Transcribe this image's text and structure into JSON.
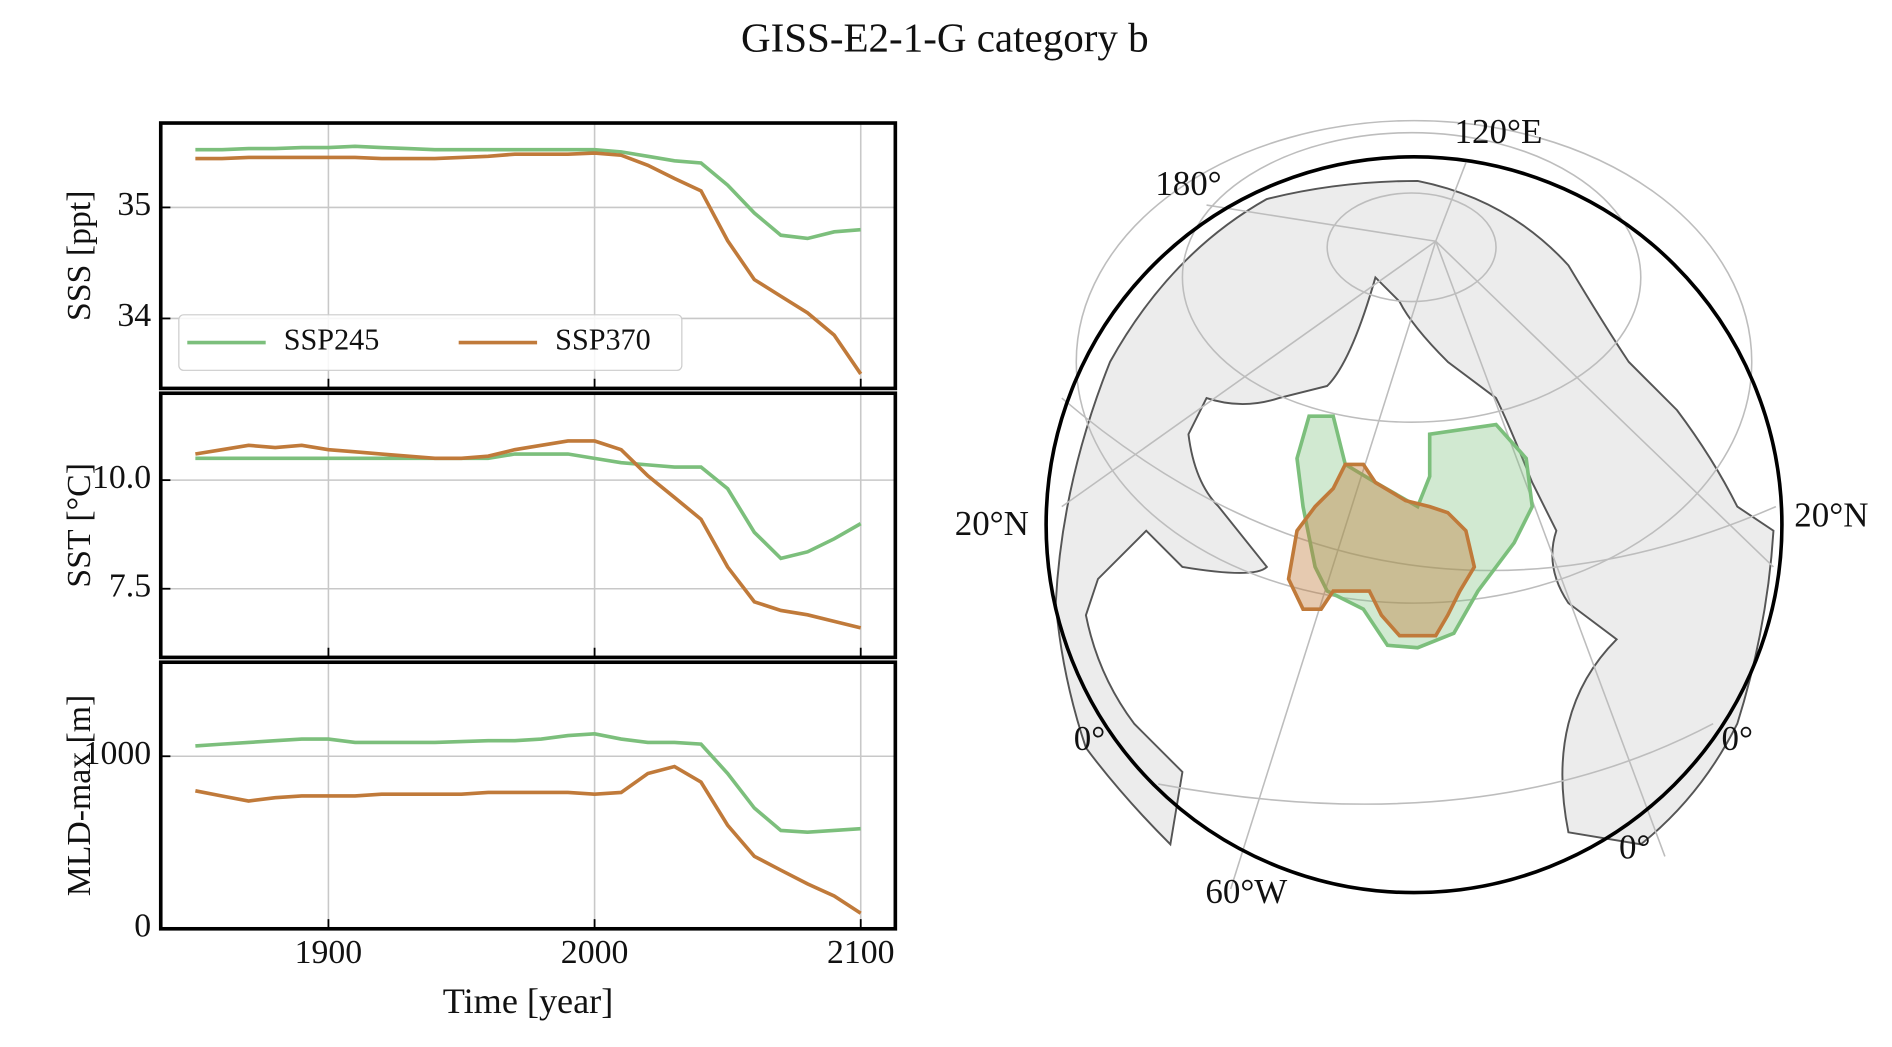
{
  "title": "GISS-E2-1-G category b",
  "chart_data": [
    {
      "type": "line",
      "ylabel": "SSS [ppt]",
      "x": [
        1850,
        1860,
        1870,
        1880,
        1890,
        1900,
        1910,
        1920,
        1930,
        1940,
        1950,
        1960,
        1970,
        1980,
        1990,
        2000,
        2010,
        2020,
        2030,
        2040,
        2050,
        2060,
        2070,
        2080,
        2090,
        2100
      ],
      "xlim": [
        1837,
        2113
      ],
      "xticks": [
        1900,
        2000,
        2100
      ],
      "ylim": [
        33.37,
        35.76
      ],
      "yticks": [
        34,
        35
      ],
      "grid": true,
      "legend": "lower left",
      "series": [
        {
          "name": "SSP245",
          "color": "#7cbf7c",
          "values": [
            35.52,
            35.52,
            35.53,
            35.53,
            35.54,
            35.54,
            35.55,
            35.54,
            35.53,
            35.52,
            35.52,
            35.52,
            35.52,
            35.52,
            35.52,
            35.52,
            35.5,
            35.46,
            35.42,
            35.4,
            35.2,
            34.95,
            34.75,
            34.72,
            34.78,
            34.8
          ]
        },
        {
          "name": "SSP370",
          "color": "#c07a3a",
          "values": [
            35.44,
            35.44,
            35.45,
            35.45,
            35.45,
            35.45,
            35.45,
            35.44,
            35.44,
            35.44,
            35.45,
            35.46,
            35.48,
            35.48,
            35.48,
            35.49,
            35.47,
            35.38,
            35.26,
            35.15,
            34.7,
            34.35,
            34.2,
            34.05,
            33.85,
            33.5
          ]
        }
      ]
    },
    {
      "type": "line",
      "ylabel": "SST [°C]",
      "x": [
        1850,
        1860,
        1870,
        1880,
        1890,
        1900,
        1910,
        1920,
        1930,
        1940,
        1950,
        1960,
        1970,
        1980,
        1990,
        2000,
        2010,
        2020,
        2030,
        2040,
        2050,
        2060,
        2070,
        2080,
        2090,
        2100
      ],
      "xlim": [
        1837,
        2113
      ],
      "xticks": [
        1900,
        2000,
        2100
      ],
      "ylim": [
        5.92,
        12.0
      ],
      "yticks": [
        {
          "value": 10,
          "label": "10.0"
        },
        7.5
      ],
      "grid": true,
      "series": [
        {
          "color": "#7cbf7c",
          "values": [
            10.5,
            10.5,
            10.5,
            10.5,
            10.5,
            10.5,
            10.5,
            10.5,
            10.5,
            10.5,
            10.5,
            10.5,
            10.6,
            10.6,
            10.6,
            10.5,
            10.4,
            10.35,
            10.3,
            10.3,
            9.8,
            8.8,
            8.2,
            8.35,
            8.65,
            9.0
          ]
        },
        {
          "color": "#c07a3a",
          "values": [
            10.6,
            10.7,
            10.8,
            10.75,
            10.8,
            10.7,
            10.65,
            10.6,
            10.55,
            10.5,
            10.5,
            10.55,
            10.7,
            10.8,
            10.9,
            10.9,
            10.7,
            10.1,
            9.6,
            9.1,
            8.0,
            7.2,
            7.0,
            6.9,
            6.75,
            6.6
          ]
        }
      ]
    },
    {
      "type": "line",
      "ylabel": "MLD-max [m]",
      "xlabel": "Time [year]",
      "x": [
        1850,
        1860,
        1870,
        1880,
        1890,
        1900,
        1910,
        1920,
        1930,
        1940,
        1950,
        1960,
        1970,
        1980,
        1990,
        2000,
        2010,
        2020,
        2030,
        2040,
        2050,
        2060,
        2070,
        2080,
        2090,
        2100
      ],
      "xlim": [
        1837,
        2113
      ],
      "xticks": [
        1900,
        2000,
        2100
      ],
      "xticklabels": true,
      "ylim": [
        0,
        1545
      ],
      "yticks": [
        0,
        1000
      ],
      "grid": true,
      "series": [
        {
          "color": "#7cbf7c",
          "values": [
            1060,
            1070,
            1080,
            1090,
            1100,
            1100,
            1080,
            1080,
            1080,
            1080,
            1085,
            1090,
            1090,
            1100,
            1120,
            1130,
            1100,
            1080,
            1080,
            1070,
            900,
            700,
            570,
            560,
            570,
            580
          ]
        },
        {
          "color": "#c07a3a",
          "values": [
            800,
            770,
            740,
            760,
            770,
            770,
            770,
            780,
            780,
            780,
            780,
            790,
            790,
            790,
            790,
            780,
            790,
            900,
            940,
            850,
            600,
            420,
            340,
            260,
            190,
            90
          ]
        }
      ]
    },
    {
      "type": "map",
      "labels": [
        "120°E",
        "180°",
        "20°N",
        "20°N",
        "0°",
        "0°",
        "0°",
        "60°W"
      ]
    }
  ]
}
